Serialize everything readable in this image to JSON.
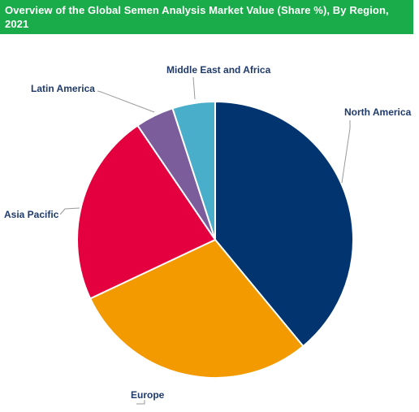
{
  "chart_title": "Overview of the Global Semen Analysis Market Value (Share %), By Region, 2021",
  "colors": {
    "title_bar": "#1aab4b",
    "title_text": "#ffffff",
    "label_text": "#1f3a6b",
    "leader_line": "#9a9a9a"
  },
  "chart_data": {
    "type": "pie",
    "title": "Overview of the Global Semen Analysis Market Value (Share %), By Region, 2021",
    "start_angle_deg": 0,
    "direction": "clockwise",
    "slices": [
      {
        "label": "North America",
        "value": 39,
        "color": "#02346f"
      },
      {
        "label": "Europe",
        "value": 29,
        "color": "#f29a00"
      },
      {
        "label": "Asia Pacific",
        "value": 22.5,
        "color": "#e4003f"
      },
      {
        "label": "Latin America",
        "value": 4.5,
        "color": "#7b5d9b"
      },
      {
        "label": "Middle East and Africa",
        "value": 5,
        "color": "#48aec9"
      }
    ]
  }
}
